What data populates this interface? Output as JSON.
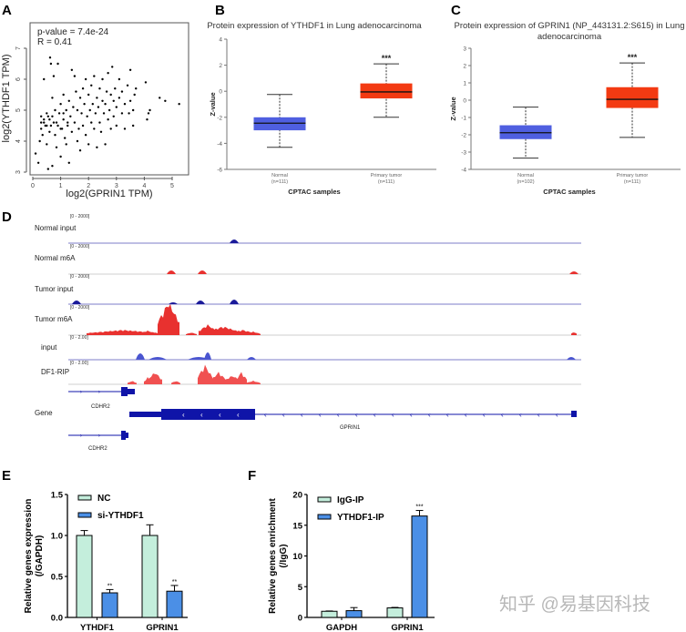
{
  "panel_labels": [
    "A",
    "B",
    "C",
    "D",
    "E",
    "F"
  ],
  "watermark": "知乎 @易基因科技",
  "chart_data": [
    {
      "panel": "A",
      "type": "scatter",
      "xlabel": "log2(GPRIN1 TPM)",
      "ylabel": "log2(YTHDF1 TPM)",
      "annotations": [
        "p-value = 7.4e-24",
        "R = 0.41"
      ],
      "xticks": [
        0,
        1,
        2,
        3,
        4,
        5
      ],
      "yticks": [
        3,
        4,
        5,
        6,
        7
      ],
      "point_color": "#000000",
      "points": [
        [
          0.1,
          3.6
        ],
        [
          0.2,
          3.3
        ],
        [
          0.25,
          4.0
        ],
        [
          0.3,
          4.4
        ],
        [
          0.3,
          4.8
        ],
        [
          0.35,
          4.2
        ],
        [
          0.4,
          6.0
        ],
        [
          0.4,
          4.6
        ],
        [
          0.45,
          4.5
        ],
        [
          0.5,
          4.9
        ],
        [
          0.5,
          3.9
        ],
        [
          0.55,
          3.1
        ],
        [
          0.6,
          4.7
        ],
        [
          0.6,
          4.3
        ],
        [
          0.62,
          6.7
        ],
        [
          0.65,
          6.5
        ],
        [
          0.7,
          5.4
        ],
        [
          0.7,
          3.2
        ],
        [
          0.75,
          4.6
        ],
        [
          0.75,
          6.1
        ],
        [
          0.8,
          5.0
        ],
        [
          0.8,
          4.2
        ],
        [
          0.85,
          3.8
        ],
        [
          0.9,
          6.5
        ],
        [
          0.9,
          4.5
        ],
        [
          0.95,
          4.9
        ],
        [
          1.0,
          5.2
        ],
        [
          1.0,
          3.5
        ],
        [
          1.05,
          4.4
        ],
        [
          1.1,
          4.7
        ],
        [
          1.1,
          5.5
        ],
        [
          1.15,
          4.1
        ],
        [
          1.2,
          5.0
        ],
        [
          1.2,
          3.9
        ],
        [
          1.25,
          4.6
        ],
        [
          1.3,
          5.3
        ],
        [
          1.3,
          3.3
        ],
        [
          1.35,
          4.8
        ],
        [
          1.4,
          6.3
        ],
        [
          1.4,
          4.3
        ],
        [
          1.45,
          5.1
        ],
        [
          1.5,
          6.1
        ],
        [
          1.5,
          4.6
        ],
        [
          1.55,
          5.6
        ],
        [
          1.6,
          4.0
        ],
        [
          1.6,
          5.0
        ],
        [
          1.65,
          4.4
        ],
        [
          1.7,
          5.4
        ],
        [
          1.7,
          3.7
        ],
        [
          1.75,
          4.9
        ],
        [
          1.8,
          5.7
        ],
        [
          1.8,
          4.5
        ],
        [
          1.85,
          5.2
        ],
        [
          1.9,
          6.0
        ],
        [
          1.9,
          4.2
        ],
        [
          1.95,
          4.8
        ],
        [
          2.0,
          5.5
        ],
        [
          2.0,
          3.9
        ],
        [
          2.05,
          5.0
        ],
        [
          2.1,
          4.6
        ],
        [
          2.1,
          5.8
        ],
        [
          2.15,
          5.2
        ],
        [
          2.2,
          6.1
        ],
        [
          2.2,
          4.4
        ],
        [
          2.25,
          4.9
        ],
        [
          2.3,
          5.4
        ],
        [
          2.3,
          3.8
        ],
        [
          2.35,
          5.1
        ],
        [
          2.4,
          5.7
        ],
        [
          2.4,
          4.6
        ],
        [
          2.45,
          4.3
        ],
        [
          2.5,
          5.3
        ],
        [
          2.5,
          6.0
        ],
        [
          2.55,
          4.9
        ],
        [
          2.6,
          5.2
        ],
        [
          2.6,
          3.9
        ],
        [
          2.65,
          5.6
        ],
        [
          2.7,
          4.7
        ],
        [
          2.7,
          6.2
        ],
        [
          2.75,
          5.0
        ],
        [
          2.8,
          5.5
        ],
        [
          2.8,
          4.4
        ],
        [
          2.85,
          6.4
        ],
        [
          2.9,
          5.3
        ],
        [
          2.9,
          4.8
        ],
        [
          2.95,
          5.7
        ],
        [
          3.0,
          5.1
        ],
        [
          3.0,
          4.5
        ],
        [
          3.1,
          5.4
        ],
        [
          3.1,
          6.0
        ],
        [
          3.2,
          4.9
        ],
        [
          3.2,
          5.6
        ],
        [
          3.3,
          5.2
        ],
        [
          3.3,
          4.4
        ],
        [
          3.4,
          5.8
        ],
        [
          3.45,
          4.9
        ],
        [
          3.5,
          6.3
        ],
        [
          3.5,
          5.3
        ],
        [
          3.6,
          5.0
        ],
        [
          3.6,
          4.5
        ],
        [
          3.65,
          5.5
        ],
        [
          3.7,
          5.7
        ],
        [
          4.05,
          5.9
        ],
        [
          4.1,
          4.7
        ],
        [
          4.15,
          4.9
        ],
        [
          4.2,
          5.0
        ],
        [
          4.55,
          5.4
        ],
        [
          4.75,
          5.3
        ],
        [
          5.25,
          5.2
        ],
        [
          0.3,
          4.6
        ],
        [
          0.4,
          4.7
        ],
        [
          0.5,
          4.5
        ],
        [
          0.55,
          4.8
        ],
        [
          0.65,
          4.5
        ],
        [
          0.7,
          4.8
        ],
        [
          0.85,
          4.6
        ],
        [
          1.0,
          4.4
        ],
        [
          1.1,
          4.9
        ],
        [
          1.25,
          4.5
        ]
      ]
    },
    {
      "panel": "B",
      "type": "box",
      "title": [
        "Protein expression of YTHDF1 in Lung adenocarcinoma"
      ],
      "xlabel": "CPTAC samples",
      "ylabel": "Z-value",
      "yticks": [
        4,
        2,
        0,
        -2,
        -4,
        -6
      ],
      "significance": "***",
      "groups": [
        {
          "name": "Normal",
          "n": "(n=111)",
          "color": "#4f5fe0",
          "min": -4.3,
          "q1": -3.0,
          "median": -2.45,
          "q3": -2.0,
          "max": -0.25
        },
        {
          "name": "Primary tumor",
          "n": "(n=111)",
          "color": "#f33a12",
          "min": -2.0,
          "q1": -0.55,
          "median": -0.05,
          "q3": 0.6,
          "max": 2.1
        }
      ]
    },
    {
      "panel": "C",
      "type": "box",
      "title": [
        "Protein expression of GPRIN1 (NP_443131.2:S615) in Lung",
        "adenocarcinoma"
      ],
      "xlabel": "CPTAC samples",
      "ylabel": "Z-value",
      "yticks": [
        3,
        2,
        1,
        0,
        -1,
        -2,
        -3,
        -4
      ],
      "significance": "***",
      "groups": [
        {
          "name": "Normal",
          "n": "(n=102)",
          "color": "#4f5fe0",
          "min": -3.35,
          "q1": -2.25,
          "median": -1.88,
          "q3": -1.45,
          "max": -0.4
        },
        {
          "name": "Primary tumor",
          "n": "(n=111)",
          "color": "#f33a12",
          "min": -2.15,
          "q1": -0.45,
          "median": 0.05,
          "q3": 0.75,
          "max": 2.15
        }
      ]
    },
    {
      "panel": "E",
      "type": "bar",
      "ylabel": [
        "Relative genes expression",
        "(/GAPDH)"
      ],
      "categories": [
        "YTHDF1",
        "GPRIN1"
      ],
      "yticks": [
        "0.0",
        "0.5",
        "1.0",
        "1.5"
      ],
      "ylim": [
        0,
        1.5
      ],
      "series": [
        {
          "name": "NC",
          "color": "#c4eedc",
          "values": [
            1.0,
            1.0
          ],
          "errors": [
            0.06,
            0.13
          ],
          "sig": [
            "",
            ""
          ]
        },
        {
          "name": "si-YTHDF1",
          "color": "#4b8fe6",
          "values": [
            0.3,
            0.32
          ],
          "errors": [
            0.04,
            0.07
          ],
          "sig": [
            "**",
            "**"
          ]
        }
      ]
    },
    {
      "panel": "F",
      "type": "bar",
      "ylabel": [
        "Relative genes enrichment",
        "(/IgG)"
      ],
      "categories": [
        "GAPDH",
        "GPRIN1"
      ],
      "yticks": [
        "0",
        "5",
        "10",
        "15",
        "20"
      ],
      "ylim": [
        0,
        20
      ],
      "series": [
        {
          "name": "IgG-IP",
          "color": "#c4eedc",
          "values": [
            1.0,
            1.55
          ],
          "errors": [
            0.05,
            0.08
          ],
          "sig": [
            "",
            ""
          ]
        },
        {
          "name": "YTHDF1-IP",
          "color": "#4b8fe6",
          "values": [
            1.1,
            16.5
          ],
          "errors": [
            0.5,
            0.9
          ],
          "sig": [
            "",
            "***"
          ]
        }
      ]
    }
  ],
  "genome_browser": {
    "panel": "D",
    "tracks": [
      {
        "name": "Normal input",
        "scale": "[0 - 2000]",
        "color": "#1a1a9a"
      },
      {
        "name": "Normal m6A",
        "scale": "[0 - 2000]",
        "color": "#e8312f"
      },
      {
        "name": "Tumor input",
        "scale": "[0 - 2000]",
        "color": "#1a1a9a"
      },
      {
        "name": "Tumor m6A",
        "scale": "[0 - 2000]",
        "color": "#e8312f"
      },
      {
        "name": "input",
        "scale": "[0 - 2.00]",
        "color": "#4a55d0"
      },
      {
        "name": "DF1-RIP",
        "scale": "[0 - 2.00]",
        "color": "#f05050"
      }
    ],
    "gene_track_label": "Gene",
    "genes": [
      "CDHR2",
      "GPRIN1",
      "CDHR2"
    ],
    "gene_color": "#0f14a8"
  }
}
